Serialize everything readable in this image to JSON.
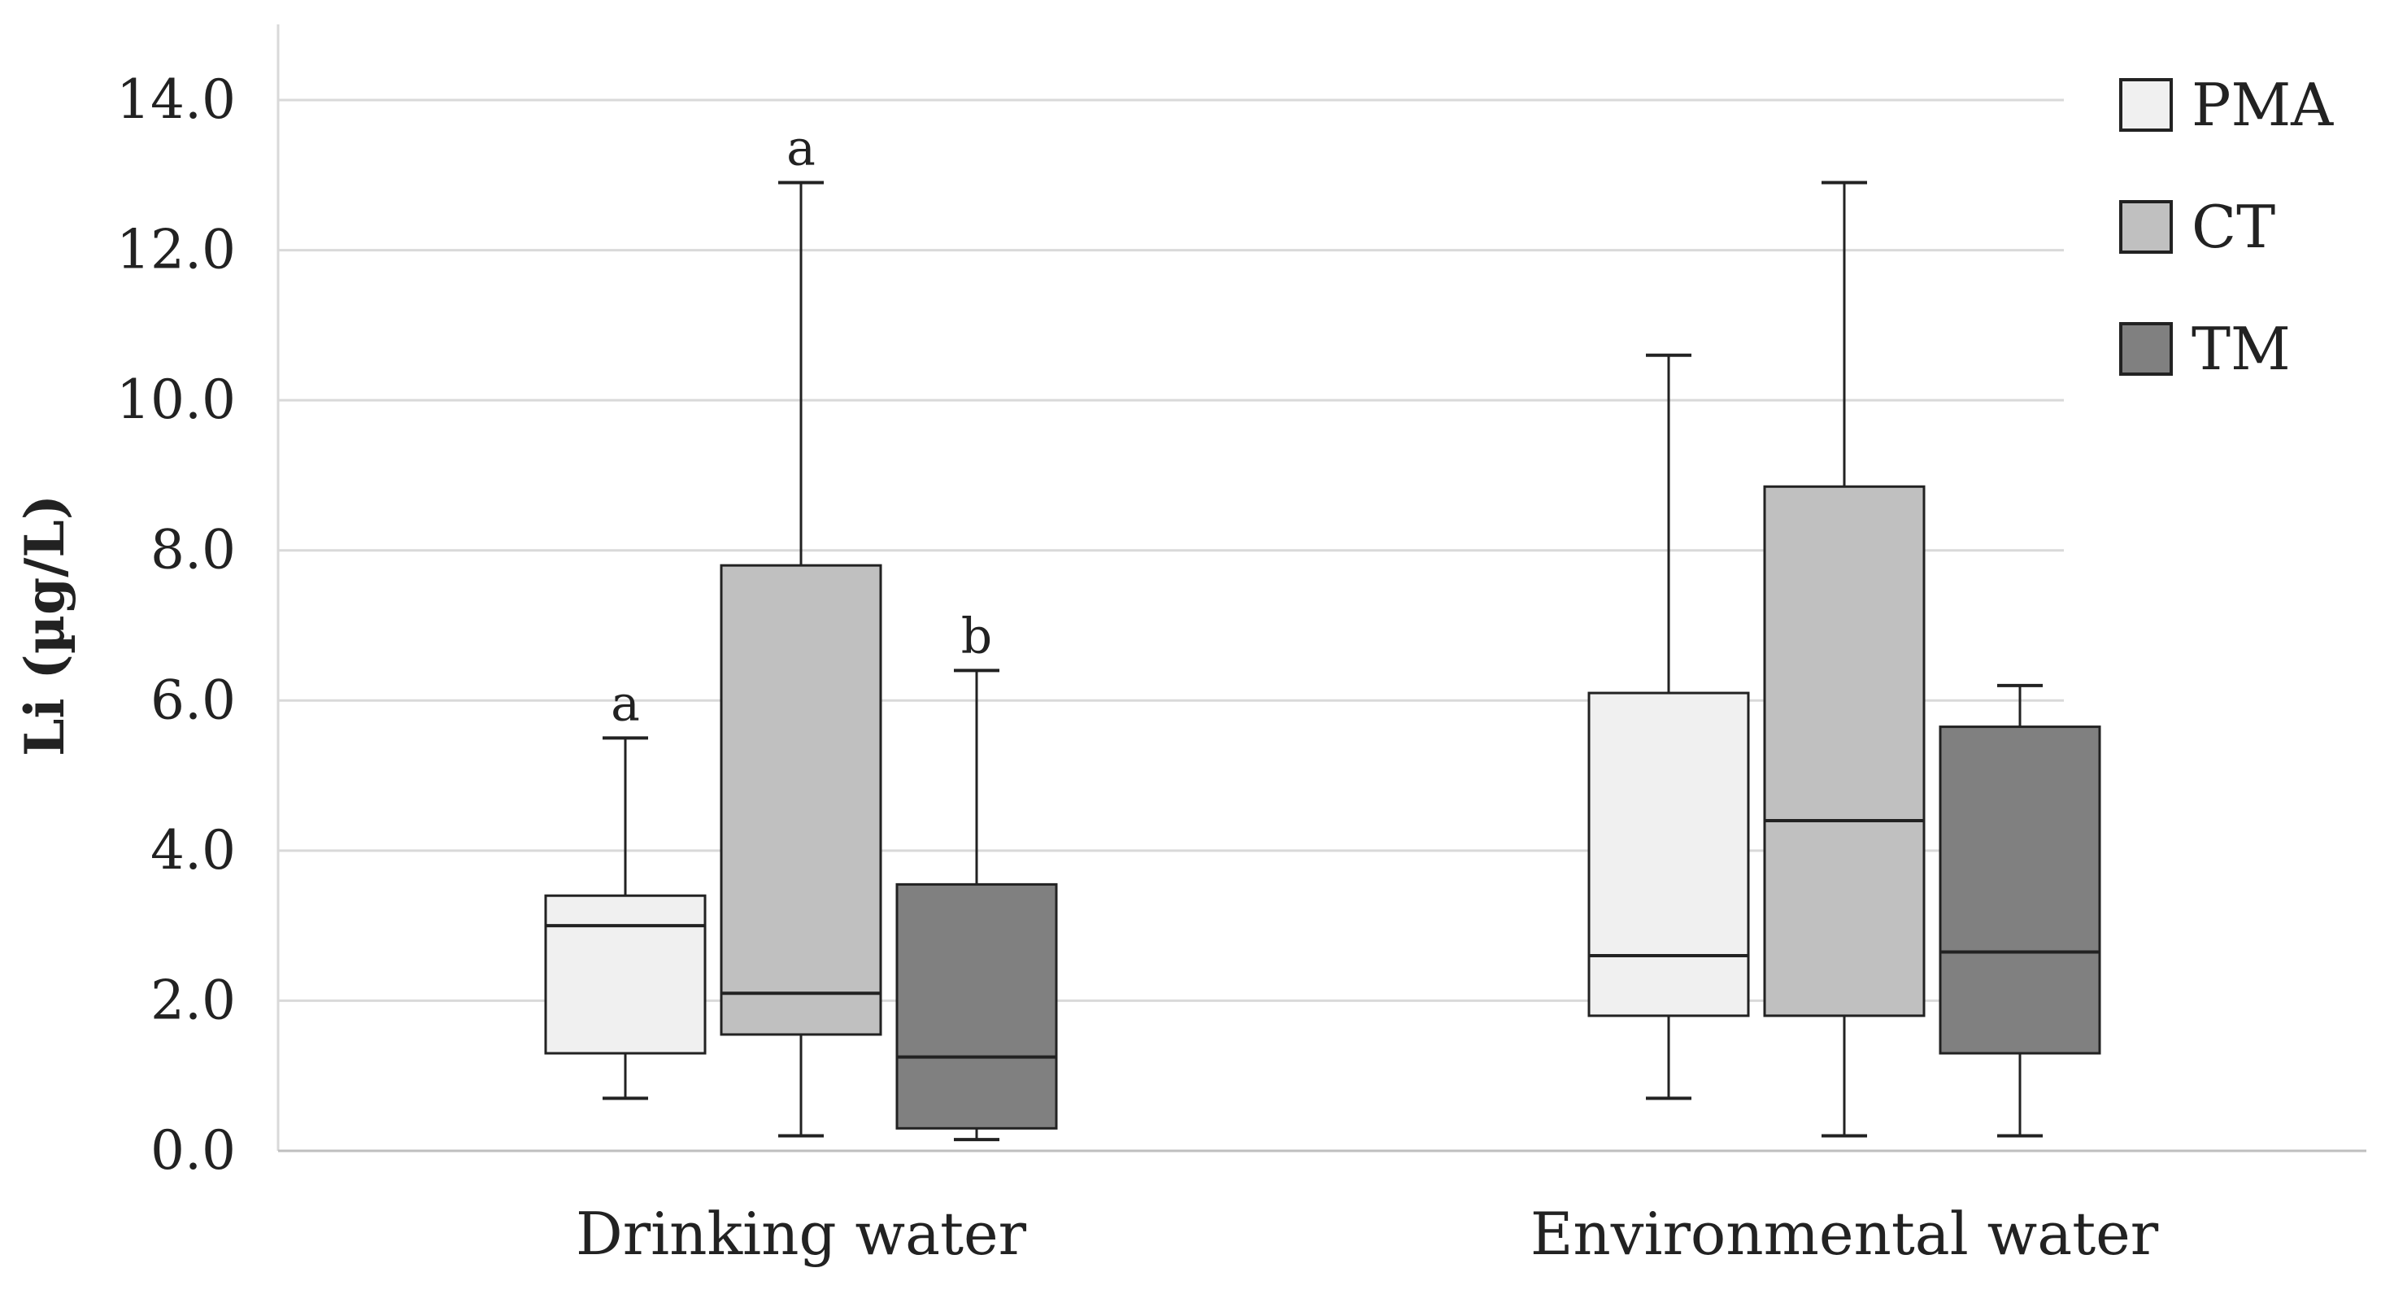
{
  "chart_data": {
    "type": "boxplot",
    "title": "",
    "xlabel": "",
    "ylabel": "Li (µg/L)",
    "ylim": [
      0,
      14
    ],
    "yticks": [
      "0.0",
      "2.0",
      "4.0",
      "6.0",
      "8.0",
      "10.0",
      "12.0",
      "14.0"
    ],
    "grid": true,
    "legend_position": "top-right",
    "categories": [
      "Drinking water",
      "Environmental water"
    ],
    "series": [
      {
        "name": "PMA",
        "color": "#f0f0f0",
        "boxes": [
          {
            "min": 0.7,
            "q1": 1.3,
            "median": 3.0,
            "q3": 3.4,
            "max": 5.5,
            "annotation": "a"
          },
          {
            "min": 0.7,
            "q1": 1.8,
            "median": 2.6,
            "q3": 6.1,
            "max": 10.6,
            "annotation": ""
          }
        ]
      },
      {
        "name": "CT",
        "color": "#c0c0c0",
        "boxes": [
          {
            "min": 0.2,
            "q1": 1.55,
            "median": 2.1,
            "q3": 7.8,
            "max": 12.9,
            "annotation": "a"
          },
          {
            "min": 0.2,
            "q1": 1.8,
            "median": 4.4,
            "q3": 8.85,
            "max": 12.9,
            "annotation": ""
          }
        ]
      },
      {
        "name": "TM",
        "color": "#808080",
        "boxes": [
          {
            "min": 0.15,
            "q1": 0.3,
            "median": 1.25,
            "q3": 3.55,
            "max": 6.4,
            "annotation": "b"
          },
          {
            "min": 0.2,
            "q1": 1.3,
            "median": 2.65,
            "q3": 5.65,
            "max": 6.2,
            "annotation": ""
          }
        ]
      }
    ]
  }
}
